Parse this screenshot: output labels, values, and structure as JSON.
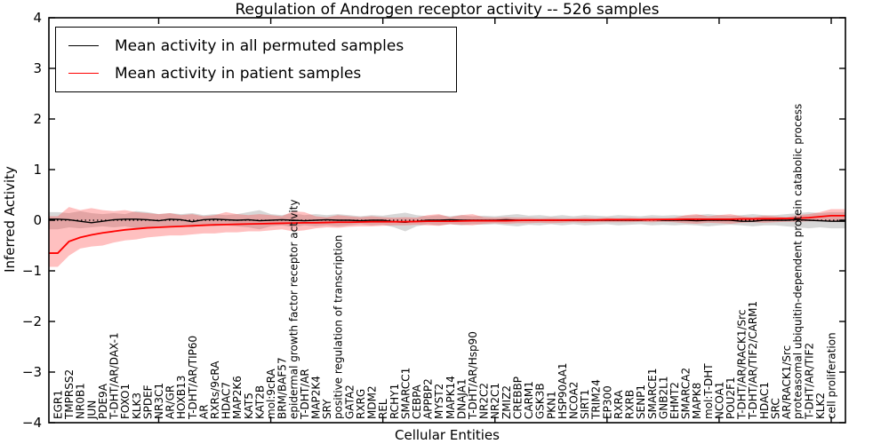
{
  "title": "Regulation of Androgen receptor activity -- 526 samples",
  "legend": [
    {
      "label": "Mean activity in all permuted samples",
      "color": "#000000"
    },
    {
      "label": "Mean activity in patient samples",
      "color": "#ff0000"
    }
  ],
  "chart_data": {
    "type": "line",
    "title": "Regulation of Androgen receptor activity -- 526 samples",
    "xlabel": "Cellular Entities",
    "ylabel": "Inferred Activity",
    "ylim": [
      -4,
      4
    ],
    "yticks": [
      -4,
      -3,
      -2,
      -1,
      0,
      1,
      2,
      3,
      4
    ],
    "xtick_indices": [
      9,
      19,
      29,
      39,
      49,
      59,
      69
    ],
    "grid": false,
    "legend_position": "upper left",
    "zero_line": true,
    "colors": {
      "permuted_line": "#000000",
      "patient_line": "#ff0000",
      "permuted_band": "rgba(130,130,130,0.32)",
      "patient_band": "rgba(255,45,45,0.30)"
    },
    "categories": [
      "EGR1",
      "TMPRSS2",
      "NR0B1",
      "JUN",
      "PDE9A",
      "T-DHT/AR/DAX-1",
      "FOXO1",
      "KLK3",
      "SPDEF",
      "NR3C1",
      "AR/GR",
      "HOXB13",
      "T-DHT/AR/TIP60",
      "AR",
      "RXRs/9cRA",
      "HDAC7",
      "MAP2K6",
      "KAT5",
      "KAT2B",
      "mol:9cRA",
      "BRM/BAF57",
      "epidermal growth factor receptor activity",
      "T-DHT/AR",
      "MAP2K4",
      "SRY",
      "positive regulation of transcription",
      "GATA2",
      "RXRG",
      "MDM2",
      "REL",
      "RCHY1",
      "SMARCC1",
      "CEBPA",
      "APPBP2",
      "MYST2",
      "MAPK14",
      "DNAJA1",
      "T-DHT/AR/Hsp90",
      "NR2C2",
      "NR2C1",
      "ZMIZ2",
      "CREBBP",
      "CARM1",
      "GSK3B",
      "PKN1",
      "HSP90AA1",
      "NCOA2",
      "SIRT1",
      "TRIM24",
      "EP300",
      "RXRA",
      "RXRB",
      "SENP1",
      "SMARCE1",
      "GNB2L1",
      "EHMT2",
      "SMARCA2",
      "MAPK8",
      "mol:T-DHT",
      "NCOA1",
      "POU2F1",
      "T-DHT/AR/RACK1/Src",
      "T-DHT/AR/TIF2/CARM1",
      "HDAC1",
      "SRC",
      "AR/RACK1/Src",
      "proteasomal ubiquitin-dependent protein catabolic process",
      "T-DHT/AR/TIF2",
      "KLK2",
      "cell proliferation"
    ],
    "series": [
      {
        "name": "Mean activity in all permuted samples",
        "color": "#000000",
        "values": [
          0.02,
          0.01,
          -0.02,
          -0.05,
          -0.02,
          0.01,
          0.02,
          0.02,
          0.01,
          -0.01,
          0.02,
          0.01,
          -0.03,
          0.01,
          0.02,
          0.01,
          0.0,
          0.01,
          -0.01,
          0.0,
          0.01,
          0.0,
          -0.01,
          0.0,
          0.01,
          0.0,
          0.0,
          -0.01,
          0.0,
          0.0,
          -0.03,
          -0.04,
          -0.02,
          0.0,
          0.0,
          0.01,
          0.0,
          0.0,
          0.0,
          0.0,
          0.01,
          0.0,
          0.0,
          0.0,
          0.0,
          0.0,
          0.0,
          0.0,
          0.0,
          0.0,
          0.0,
          0.0,
          0.0,
          0.01,
          0.0,
          0.0,
          0.0,
          -0.01,
          0.0,
          0.0,
          0.0,
          -0.02,
          -0.02,
          0.0,
          0.0,
          0.0,
          0.01,
          0.0,
          -0.01,
          -0.02
        ]
      },
      {
        "name": "Mean activity in patient samples",
        "color": "#ff0000",
        "values": [
          -0.65,
          -0.42,
          -0.34,
          -0.29,
          -0.25,
          -0.22,
          -0.19,
          -0.17,
          -0.15,
          -0.14,
          -0.13,
          -0.12,
          -0.11,
          -0.1,
          -0.09,
          -0.085,
          -0.08,
          -0.075,
          -0.07,
          -0.065,
          -0.06,
          -0.055,
          -0.05,
          -0.05,
          -0.045,
          -0.04,
          -0.04,
          -0.035,
          -0.03,
          -0.03,
          -0.03,
          -0.03,
          -0.025,
          -0.02,
          -0.02,
          -0.02,
          -0.015,
          -0.01,
          -0.01,
          -0.01,
          -0.01,
          -0.005,
          0,
          0,
          0,
          0,
          0.005,
          0.005,
          0.005,
          0.01,
          0.01,
          0.01,
          0.01,
          0.01,
          0.015,
          0.015,
          0.02,
          0.02,
          0.02,
          0.02,
          0.02,
          0.025,
          0.025,
          0.03,
          0.03,
          0.035,
          0.04,
          0.05,
          0.07,
          0.09
        ]
      }
    ],
    "bands": [
      {
        "name": "permuted-samples-range",
        "color": "rgba(130,130,130,0.32)",
        "upper": [
          0.16,
          0.14,
          0.18,
          0.14,
          0.12,
          0.14,
          0.12,
          0.18,
          0.16,
          0.12,
          0.14,
          0.12,
          0.14,
          0.1,
          0.12,
          0.1,
          0.12,
          0.16,
          0.2,
          0.12,
          0.1,
          0.14,
          0.1,
          0.12,
          0.1,
          0.12,
          0.1,
          0.08,
          0.1,
          0.09,
          0.12,
          0.15,
          0.1,
          0.08,
          0.1,
          0.08,
          0.1,
          0.08,
          0.09,
          0.08,
          0.1,
          0.12,
          0.09,
          0.1,
          0.08,
          0.1,
          0.08,
          0.1,
          0.09,
          0.08,
          0.1,
          0.09,
          0.08,
          0.1,
          0.09,
          0.1,
          0.09,
          0.1,
          0.12,
          0.1,
          0.09,
          0.1,
          0.12,
          0.1,
          0.1,
          0.12,
          0.14,
          0.16,
          0.14,
          0.16
        ],
        "lower": [
          -0.18,
          -0.14,
          -0.16,
          -0.14,
          -0.12,
          -0.14,
          -0.12,
          -0.16,
          -0.14,
          -0.12,
          -0.14,
          -0.12,
          -0.14,
          -0.1,
          -0.12,
          -0.1,
          -0.12,
          -0.14,
          -0.18,
          -0.12,
          -0.1,
          -0.14,
          -0.1,
          -0.12,
          -0.1,
          -0.12,
          -0.1,
          -0.08,
          -0.1,
          -0.09,
          -0.14,
          -0.22,
          -0.12,
          -0.08,
          -0.1,
          -0.08,
          -0.1,
          -0.08,
          -0.09,
          -0.08,
          -0.1,
          -0.12,
          -0.09,
          -0.1,
          -0.08,
          -0.1,
          -0.08,
          -0.1,
          -0.09,
          -0.08,
          -0.1,
          -0.09,
          -0.08,
          -0.1,
          -0.09,
          -0.1,
          -0.09,
          -0.1,
          -0.12,
          -0.1,
          -0.09,
          -0.1,
          -0.12,
          -0.1,
          -0.1,
          -0.12,
          -0.14,
          -0.16,
          -0.14,
          -0.16
        ]
      },
      {
        "name": "patient-samples-range",
        "color": "rgba(255,45,45,0.30)",
        "upper": [
          0.08,
          0.26,
          0.2,
          0.24,
          0.2,
          0.18,
          0.2,
          0.16,
          0.14,
          0.12,
          0.14,
          0.1,
          0.12,
          0.08,
          0.1,
          0.16,
          0.12,
          0.1,
          0.12,
          0.1,
          0.08,
          0.18,
          0.16,
          0.08,
          0.06,
          0.1,
          0.08,
          0.06,
          0.08,
          0.06,
          0.05,
          0.06,
          0.05,
          0.1,
          0.12,
          0.06,
          0.1,
          0.12,
          0.06,
          0.05,
          0.06,
          0.05,
          0.05,
          0.04,
          0.05,
          0.04,
          0.04,
          0.05,
          0.04,
          0.05,
          0.04,
          0.05,
          0.04,
          0.05,
          0.04,
          0.05,
          0.1,
          0.12,
          0.08,
          0.1,
          0.12,
          0.08,
          0.06,
          0.09,
          0.08,
          0.06,
          0.1,
          0.12,
          0.16,
          0.22
        ],
        "lower": [
          -0.92,
          -0.7,
          -0.56,
          -0.52,
          -0.5,
          -0.44,
          -0.4,
          -0.38,
          -0.34,
          -0.32,
          -0.3,
          -0.3,
          -0.28,
          -0.26,
          -0.26,
          -0.24,
          -0.24,
          -0.22,
          -0.22,
          -0.2,
          -0.18,
          -0.22,
          -0.2,
          -0.16,
          -0.14,
          -0.15,
          -0.13,
          -0.12,
          -0.12,
          -0.11,
          -0.1,
          -0.1,
          -0.09,
          -0.1,
          -0.11,
          -0.08,
          -0.09,
          -0.1,
          -0.07,
          -0.06,
          -0.07,
          -0.06,
          -0.06,
          -0.05,
          -0.06,
          -0.05,
          -0.04,
          -0.05,
          -0.04,
          -0.04,
          -0.04,
          -0.04,
          -0.03,
          -0.04,
          -0.03,
          -0.04,
          -0.06,
          -0.07,
          -0.05,
          -0.06,
          -0.07,
          -0.05,
          -0.04,
          -0.05,
          -0.04,
          -0.03,
          -0.03,
          -0.02,
          -0.02,
          -0.03
        ]
      }
    ]
  }
}
